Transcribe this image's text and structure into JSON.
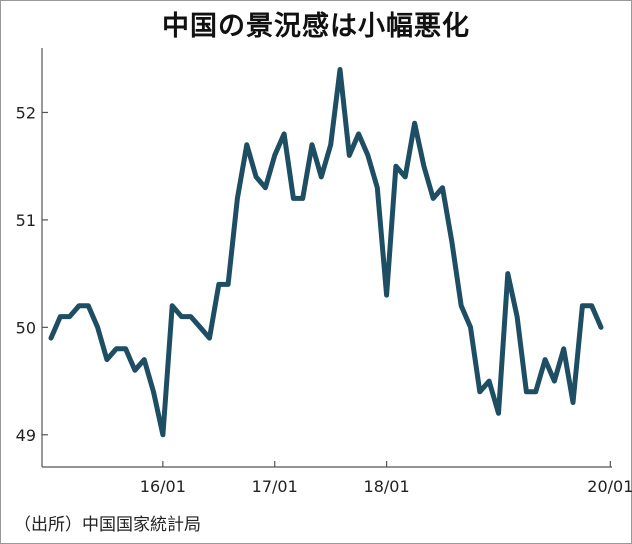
{
  "title": "中国の景況感は小幅悪化",
  "source": "（出所）中国国家統計局",
  "chart_data": {
    "type": "line",
    "title": "中国の景況感は小幅悪化",
    "xlabel": "",
    "ylabel": "",
    "ylim": [
      48.7,
      52.6
    ],
    "y_ticks": [
      49,
      50,
      51,
      52
    ],
    "x_ticks": [
      {
        "label": "16/01",
        "index": 12
      },
      {
        "label": "17/01",
        "index": 24
      },
      {
        "label": "18/01",
        "index": 36
      },
      {
        "label": "20/01",
        "index": 60
      }
    ],
    "color": "#1d4e63",
    "grid": false,
    "series": [
      {
        "values": [
          49.9,
          50.1,
          50.1,
          50.2,
          50.2,
          50.0,
          49.7,
          49.8,
          49.8,
          49.6,
          49.7,
          49.4,
          49.0,
          50.2,
          50.1,
          50.1,
          50.0,
          49.9,
          50.4,
          50.4,
          51.2,
          51.7,
          51.4,
          51.3,
          51.6,
          51.8,
          51.2,
          51.2,
          51.7,
          51.4,
          51.7,
          52.4,
          51.6,
          51.8,
          51.6,
          51.3,
          50.3,
          51.5,
          51.4,
          51.9,
          51.5,
          51.2,
          51.3,
          50.8,
          50.2,
          50.0,
          49.4,
          49.5,
          49.2,
          50.5,
          50.1,
          49.4,
          49.4,
          49.7,
          49.5,
          49.8,
          49.3,
          50.2,
          50.2,
          50.0
        ]
      }
    ]
  }
}
